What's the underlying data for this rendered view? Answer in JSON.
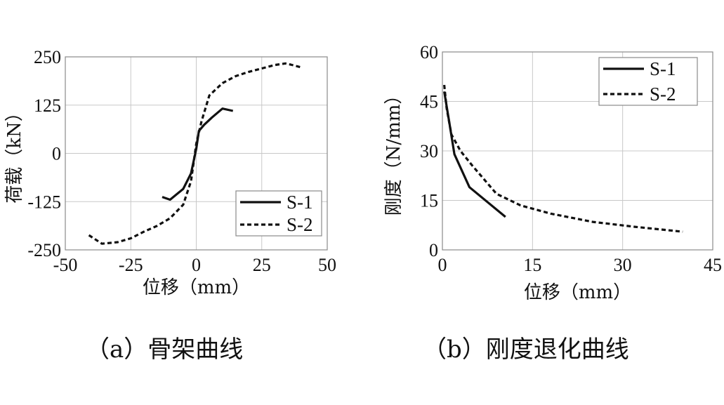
{
  "chart_data": [
    {
      "type": "line",
      "caption": "（a）骨架曲线",
      "xlabel": "位移（mm）",
      "ylabel": "荷载（kN）",
      "xlim": [
        -50,
        50
      ],
      "ylim": [
        -250,
        250
      ],
      "xticks": [
        -50,
        -25,
        0,
        25,
        50
      ],
      "yticks": [
        -250,
        -125,
        0,
        125,
        250
      ],
      "xtick_labels": [
        "-50",
        "-25",
        "0",
        "25",
        "50"
      ],
      "ytick_labels": [
        "-250",
        "-125",
        "0",
        "125",
        "250"
      ],
      "grid": true,
      "legend_position": "bottom-right",
      "series": [
        {
          "name": "S-1",
          "style": "solid",
          "x": [
            -13,
            -10,
            -5,
            -2,
            0,
            1,
            3,
            6,
            10,
            14
          ],
          "y": [
            -113,
            -120,
            -92,
            -52,
            12,
            58,
            74,
            93,
            116,
            110
          ]
        },
        {
          "name": "S-2",
          "style": "dashed",
          "x": [
            -41,
            -36,
            -30,
            -25,
            -20,
            -15,
            -10,
            -5,
            -2,
            0,
            2,
            5,
            10,
            15,
            20,
            25,
            30,
            34,
            36,
            40
          ],
          "y": [
            -212,
            -234,
            -230,
            -220,
            -203,
            -188,
            -168,
            -133,
            -72,
            25,
            83,
            150,
            182,
            200,
            211,
            220,
            229,
            233,
            230,
            223
          ]
        }
      ]
    },
    {
      "type": "line",
      "caption": "（b）刚度退化曲线",
      "xlabel": "位移（mm）",
      "ylabel": "刚度（N/mm）",
      "xlim": [
        0,
        45
      ],
      "ylim": [
        0,
        60
      ],
      "xticks": [
        0,
        15,
        30,
        45
      ],
      "yticks": [
        0,
        15,
        30,
        45,
        60
      ],
      "xtick_labels": [
        "0",
        "15",
        "30",
        "45"
      ],
      "ytick_labels": [
        "0",
        "15",
        "30",
        "45",
        "60"
      ],
      "grid": true,
      "legend_position": "top-right",
      "series": [
        {
          "name": "S-1",
          "style": "solid",
          "x": [
            0.3,
            1.2,
            2,
            4.5,
            10.5
          ],
          "y": [
            48,
            38,
            29,
            19,
            10
          ]
        },
        {
          "name": "S-2",
          "style": "dashed",
          "x": [
            0.3,
            0.7,
            1.5,
            3,
            5,
            9,
            13,
            18,
            25,
            32,
            40
          ],
          "y": [
            50,
            43,
            35,
            30,
            25.5,
            17,
            13.5,
            11,
            8.5,
            7,
            5.5
          ]
        }
      ]
    }
  ]
}
